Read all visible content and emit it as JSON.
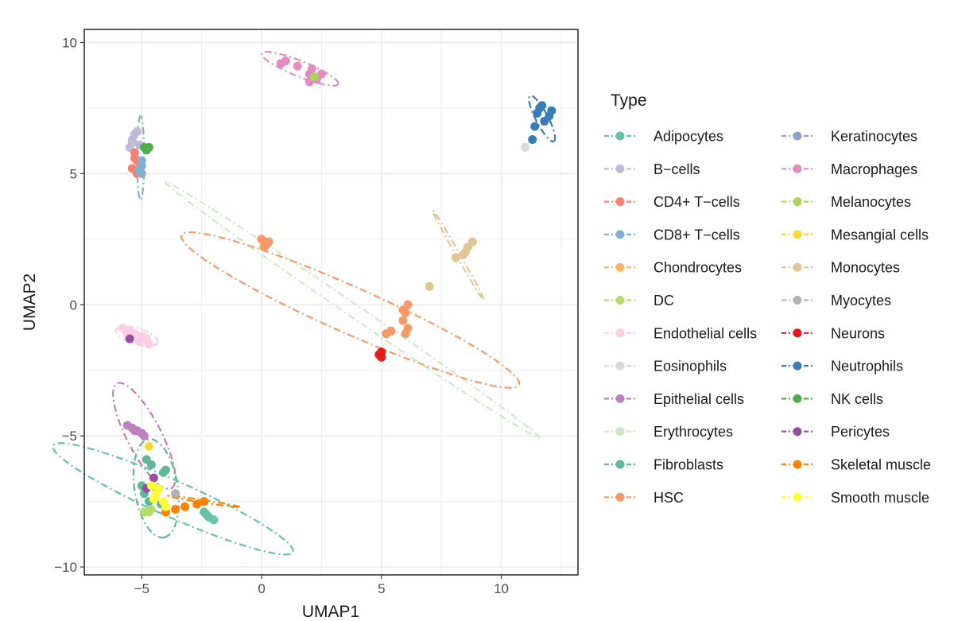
{
  "chart_data": {
    "type": "scatter",
    "title": "",
    "xlabel": "UMAP1",
    "ylabel": "UMAP2",
    "xlim": [
      -7.4,
      13.2
    ],
    "ylim": [
      -10.3,
      10.5
    ],
    "xticks": [
      -5,
      0,
      5,
      10
    ],
    "yticks": [
      -10,
      -5,
      0,
      5,
      10
    ],
    "xtick_labels": [
      "−5",
      "0",
      "5",
      "10"
    ],
    "ytick_labels": [
      "−10",
      "−5",
      "0",
      "5",
      "10"
    ],
    "grid": true,
    "legend_title": "Type",
    "legend_position": "right",
    "series": [
      {
        "name": "Adipocytes",
        "color": "#66c2a5",
        "points": [
          [
            -2.4,
            -7.9
          ],
          [
            -2.2,
            -8.1
          ],
          [
            -2.0,
            -8.2
          ],
          [
            -2.3,
            -8.0
          ]
        ],
        "ellipse": {
          "cx": -3.7,
          "cy": -7.4,
          "rx": 5.4,
          "ry": 0.7,
          "angle": -22
        }
      },
      {
        "name": "B−cells",
        "color": "#bebada",
        "points": [
          [
            -5.4,
            6.2
          ],
          [
            -5.3,
            6.5
          ],
          [
            -5.5,
            6.0
          ],
          [
            -5.2,
            6.6
          ],
          [
            -5.4,
            6.3
          ],
          [
            -5.1,
            6.1
          ]
        ],
        "ellipse": null
      },
      {
        "name": "CD4+ T−cells",
        "color": "#fb8072",
        "points": [
          [
            -5.3,
            5.8
          ],
          [
            -5.2,
            5.5
          ],
          [
            -5.4,
            5.2
          ],
          [
            -5.2,
            5.0
          ],
          [
            -5.3,
            5.6
          ]
        ],
        "ellipse": null
      },
      {
        "name": "CD8+ T−cells",
        "color": "#80b1d3",
        "points": [
          [
            -5.0,
            5.5
          ],
          [
            -5.0,
            5.3
          ],
          [
            -5.1,
            5.1
          ],
          [
            -5.0,
            5.0
          ]
        ],
        "ellipse": {
          "cx": -5.05,
          "cy": 5.6,
          "rx": 1.6,
          "ry": 0.15,
          "angle": 90
        }
      },
      {
        "name": "Chondrocytes",
        "color": "#fdb462",
        "points": [],
        "ellipse": null
      },
      {
        "name": "DC",
        "color": "#b3de69",
        "points": [
          [
            -4.9,
            -7.9
          ],
          [
            -4.7,
            -7.9
          ],
          [
            -4.6,
            -7.8
          ]
        ],
        "ellipse": null
      },
      {
        "name": "Endothelial cells",
        "color": "#fccde5",
        "points": [
          [
            -5.8,
            -0.9
          ],
          [
            -5.5,
            -1.0
          ],
          [
            -5.3,
            -1.1
          ],
          [
            -5.0,
            -1.2
          ],
          [
            -4.8,
            -1.3
          ],
          [
            -5.1,
            -1.4
          ],
          [
            -4.7,
            -1.5
          ],
          [
            -5.6,
            -1.1
          ]
        ],
        "ellipse": {
          "cx": -5.2,
          "cy": -1.2,
          "rx": 0.9,
          "ry": 0.3,
          "angle": -15
        }
      },
      {
        "name": "Eosinophils",
        "color": "#d9d9d9",
        "points": [
          [
            11.0,
            6.0
          ]
        ],
        "ellipse": null
      },
      {
        "name": "Epithelial cells",
        "color": "#bc80bd",
        "points": [
          [
            -5.6,
            -4.6
          ],
          [
            -5.4,
            -4.7
          ],
          [
            -5.2,
            -4.8
          ],
          [
            -5.0,
            -4.9
          ],
          [
            -4.9,
            -5.0
          ],
          [
            -5.3,
            -4.8
          ]
        ],
        "ellipse": {
          "cx": -4.9,
          "cy": -5.0,
          "rx": 2.3,
          "ry": 0.7,
          "angle": -60
        }
      },
      {
        "name": "Erythrocytes",
        "color": "#ccebc5",
        "points": [
          [
            0.0,
            2.5
          ],
          [
            0.1,
            2.3
          ],
          [
            0.3,
            2.4
          ]
        ],
        "ellipse": {
          "cx": 3.8,
          "cy": -0.2,
          "rx": 9.2,
          "ry": 0.25,
          "angle": -32
        }
      },
      {
        "name": "Fibroblasts",
        "color": "#5fb79c",
        "points": [
          [
            -4.8,
            -5.9
          ],
          [
            -4.6,
            -6.1
          ],
          [
            -4.0,
            -6.3
          ],
          [
            -4.1,
            -6.4
          ],
          [
            -5.0,
            -6.9
          ],
          [
            -4.4,
            -7.0
          ],
          [
            -4.2,
            -7.6
          ],
          [
            -4.7,
            -7.5
          ],
          [
            -4.9,
            -7.2
          ]
        ],
        "ellipse": {
          "cx": -4.4,
          "cy": -7.0,
          "rx": 1.9,
          "ry": 0.9,
          "angle": -80
        }
      },
      {
        "name": "HSC",
        "color": "#f79866",
        "points": [
          [
            0.0,
            2.5
          ],
          [
            0.2,
            2.3
          ],
          [
            0.3,
            2.4
          ],
          [
            0.1,
            2.2
          ],
          [
            6.1,
            0.0
          ],
          [
            6.0,
            -0.3
          ],
          [
            5.9,
            -0.6
          ],
          [
            6.1,
            -0.9
          ],
          [
            6.0,
            -1.1
          ],
          [
            5.9,
            -0.2
          ],
          [
            5.4,
            -1.0
          ],
          [
            5.2,
            -1.1
          ]
        ],
        "ellipse": {
          "cx": 3.7,
          "cy": -0.2,
          "rx": 7.6,
          "ry": 0.9,
          "angle": -22
        }
      },
      {
        "name": "Keratinocytes",
        "color": "#8da0cb",
        "points": [],
        "ellipse": null
      },
      {
        "name": "Macrophages",
        "color": "#e78ac3",
        "points": [
          [
            1.0,
            9.3
          ],
          [
            0.8,
            9.2
          ],
          [
            1.5,
            9.1
          ],
          [
            2.1,
            9.0
          ],
          [
            2.0,
            8.8
          ],
          [
            2.3,
            8.6
          ],
          [
            2.0,
            8.5
          ],
          [
            2.5,
            8.8
          ]
        ],
        "ellipse": {
          "cx": 1.6,
          "cy": 9.0,
          "rx": 1.7,
          "ry": 0.3,
          "angle": -20
        }
      },
      {
        "name": "Melanocytes",
        "color": "#a6d854",
        "points": [
          [
            2.2,
            8.7
          ]
        ],
        "ellipse": null
      },
      {
        "name": "Mesangial cells",
        "color": "#ffd92f",
        "points": [
          [
            -4.7,
            -5.4
          ]
        ],
        "ellipse": null
      },
      {
        "name": "Monocytes",
        "color": "#e5c494",
        "points": [
          [
            8.6,
            2.2
          ],
          [
            8.5,
            2.0
          ],
          [
            8.4,
            1.9
          ],
          [
            8.8,
            2.4
          ],
          [
            8.1,
            1.8
          ],
          [
            7.0,
            0.7
          ]
        ],
        "ellipse": {
          "cx": 8.2,
          "cy": 1.9,
          "rx": 2.0,
          "ry": 0.08,
          "angle": -58
        }
      },
      {
        "name": "Myocytes",
        "color": "#b3b3b3",
        "points": [
          [
            -3.6,
            -7.2
          ]
        ],
        "ellipse": null
      },
      {
        "name": "Neurons",
        "color": "#e41a1c",
        "points": [
          [
            5.0,
            -1.8
          ],
          [
            4.9,
            -1.9
          ],
          [
            5.0,
            -2.0
          ]
        ],
        "ellipse": null
      },
      {
        "name": "Neutrophils",
        "color": "#377eb8",
        "points": [
          [
            11.5,
            7.3
          ],
          [
            11.7,
            7.6
          ],
          [
            11.8,
            7.0
          ],
          [
            12.0,
            7.2
          ],
          [
            11.4,
            6.8
          ],
          [
            11.3,
            6.3
          ],
          [
            11.6,
            7.5
          ],
          [
            12.1,
            7.4
          ]
        ],
        "ellipse": {
          "cx": 11.7,
          "cy": 7.1,
          "rx": 1.0,
          "ry": 0.25,
          "angle": -60
        }
      },
      {
        "name": "NK cells",
        "color": "#4daf4a",
        "points": [
          [
            -4.9,
            6.0
          ],
          [
            -4.7,
            6.0
          ],
          [
            -4.8,
            5.9
          ]
        ],
        "ellipse": null
      },
      {
        "name": "Pericytes",
        "color": "#984ea3",
        "points": [
          [
            -5.5,
            -1.3
          ],
          [
            -4.5,
            -6.6
          ],
          [
            -4.8,
            -7.0
          ]
        ],
        "ellipse": null
      },
      {
        "name": "Skeletal muscle",
        "color": "#ff7f00",
        "points": [
          [
            -2.7,
            -7.6
          ],
          [
            -2.4,
            -7.5
          ],
          [
            -3.2,
            -7.7
          ],
          [
            -3.6,
            -7.8
          ],
          [
            -4.0,
            -7.9
          ]
        ],
        "ellipse": {
          "cx": -2.4,
          "cy": -7.5,
          "rx": 1.5,
          "ry": 0.05,
          "angle": -8
        }
      },
      {
        "name": "Smooth muscle",
        "color": "#ffff33",
        "points": [
          [
            -4.6,
            -6.9
          ],
          [
            -4.4,
            -7.2
          ],
          [
            -4.3,
            -7.0
          ],
          [
            -4.1,
            -7.5
          ],
          [
            -4.5,
            -7.4
          ],
          [
            -4.0,
            -7.7
          ]
        ],
        "ellipse": null
      }
    ]
  }
}
